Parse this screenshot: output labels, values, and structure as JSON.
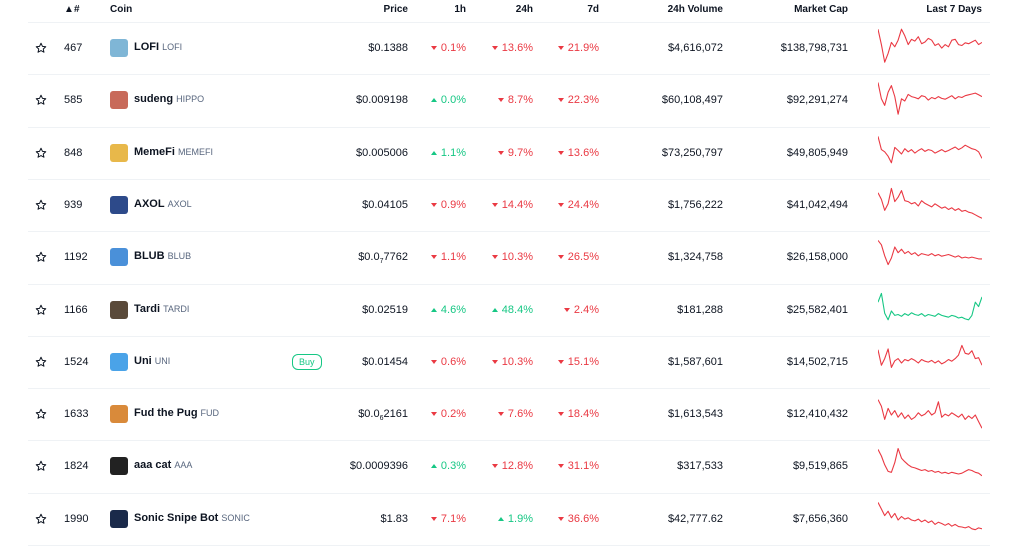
{
  "header": {
    "rank": "#",
    "coin": "Coin",
    "price": "Price",
    "h1": "1h",
    "h24": "24h",
    "d7": "7d",
    "volume": "24h Volume",
    "mcap": "Market Cap",
    "last7": "Last 7 Days"
  },
  "colors": {
    "up": "#16c784",
    "down": "#ea3943"
  },
  "rows": [
    {
      "rank": "467",
      "name": "LOFI",
      "symbol": "LOFI",
      "price": "$0.1388",
      "h1": "0.1%",
      "h1_dir": "down",
      "h24": "13.6%",
      "h24_dir": "down",
      "d7": "21.9%",
      "d7_dir": "down",
      "volume": "$4,616,072",
      "mcap": "$138,798,731",
      "logo_color": "#7fb6d6",
      "spark": [
        95,
        60,
        20,
        40,
        65,
        55,
        70,
        95,
        80,
        60,
        72,
        68,
        78,
        62,
        66,
        74,
        70,
        58,
        62,
        52,
        60,
        55,
        70,
        72,
        60,
        58,
        64,
        62,
        66,
        70,
        60,
        65
      ]
    },
    {
      "rank": "585",
      "name": "sudeng",
      "symbol": "HIPPO",
      "price": "$0.009198",
      "h1": "0.0%",
      "h1_dir": "up",
      "h24": "8.7%",
      "h24_dir": "down",
      "d7": "22.3%",
      "d7_dir": "down",
      "volume": "$60,108,497",
      "mcap": "$92,291,274",
      "logo_color": "#c86a5a",
      "spark": [
        92,
        55,
        40,
        70,
        85,
        60,
        20,
        55,
        50,
        65,
        60,
        58,
        55,
        62,
        60,
        52,
        58,
        55,
        60,
        56,
        54,
        58,
        62,
        55,
        60,
        58,
        62,
        64,
        66,
        68,
        64,
        60
      ]
    },
    {
      "rank": "848",
      "name": "MemeFi",
      "symbol": "MEMEFI",
      "price": "$0.005006",
      "h1": "1.1%",
      "h1_dir": "up",
      "h24": "9.7%",
      "h24_dir": "down",
      "d7": "13.6%",
      "d7_dir": "down",
      "volume": "$73,250,797",
      "mcap": "$49,805,949",
      "logo_color": "#e8b84a",
      "spark": [
        90,
        60,
        55,
        45,
        30,
        65,
        58,
        50,
        62,
        55,
        60,
        52,
        58,
        62,
        56,
        60,
        58,
        52,
        56,
        60,
        55,
        58,
        62,
        66,
        60,
        64,
        70,
        66,
        62,
        60,
        55,
        40
      ]
    },
    {
      "rank": "939",
      "name": "AXOL",
      "symbol": "AXOL",
      "price": "$0.04105",
      "h1": "0.9%",
      "h1_dir": "down",
      "h24": "14.4%",
      "h24_dir": "down",
      "d7": "24.4%",
      "d7_dir": "down",
      "volume": "$1,756,222",
      "mcap": "$41,042,494",
      "logo_color": "#2d4a8a",
      "spark": [
        80,
        65,
        40,
        55,
        90,
        60,
        70,
        85,
        62,
        60,
        55,
        58,
        50,
        62,
        56,
        52,
        48,
        55,
        50,
        45,
        48,
        42,
        46,
        40,
        44,
        38,
        40,
        36,
        34,
        30,
        26,
        22
      ]
    },
    {
      "rank": "1192",
      "name": "BLUB",
      "symbol": "BLUB",
      "price": "$0.0",
      "price_sub": "7",
      "price_tail": "7762",
      "h1": "1.1%",
      "h1_dir": "down",
      "h24": "10.3%",
      "h24_dir": "down",
      "d7": "26.5%",
      "d7_dir": "down",
      "volume": "$1,324,758",
      "mcap": "$26,158,000",
      "logo_color": "#4a90d9",
      "spark": [
        90,
        80,
        55,
        35,
        50,
        75,
        62,
        70,
        60,
        65,
        58,
        62,
        55,
        60,
        58,
        56,
        60,
        55,
        58,
        54,
        56,
        58,
        55,
        52,
        55,
        50,
        52,
        50,
        52,
        50,
        48,
        48
      ]
    },
    {
      "rank": "1166",
      "name": "Tardi",
      "symbol": "TARDI",
      "price": "$0.02519",
      "h1": "4.6%",
      "h1_dir": "up",
      "h24": "48.4%",
      "h24_dir": "up",
      "d7": "2.4%",
      "d7_dir": "down",
      "volume": "$181,288",
      "mcap": "$25,582,401",
      "logo_color": "#5a4a3a",
      "spark": [
        70,
        90,
        45,
        30,
        50,
        40,
        42,
        38,
        44,
        40,
        46,
        42,
        40,
        44,
        38,
        42,
        40,
        38,
        44,
        40,
        38,
        36,
        40,
        38,
        34,
        36,
        32,
        30,
        40,
        70,
        60,
        82
      ]
    },
    {
      "rank": "1524",
      "name": "Uni",
      "symbol": "UNI",
      "buy": "Buy",
      "price": "$0.01454",
      "h1": "0.6%",
      "h1_dir": "down",
      "h24": "10.3%",
      "h24_dir": "down",
      "d7": "15.1%",
      "d7_dir": "down",
      "volume": "$1,587,601",
      "mcap": "$14,502,715",
      "logo_color": "#4aa3e8",
      "spark": [
        80,
        45,
        60,
        82,
        40,
        55,
        60,
        50,
        58,
        55,
        60,
        56,
        50,
        58,
        54,
        52,
        56,
        50,
        55,
        48,
        52,
        58,
        54,
        60,
        68,
        90,
        72,
        70,
        78,
        60,
        62,
        45
      ]
    },
    {
      "rank": "1633",
      "name": "Fud the Pug",
      "symbol": "FUD",
      "price": "$0.0",
      "price_sub": "6",
      "price_tail": "2161",
      "h1": "0.2%",
      "h1_dir": "down",
      "h24": "7.6%",
      "h24_dir": "down",
      "d7": "18.4%",
      "d7_dir": "down",
      "volume": "$1,613,543",
      "mcap": "$12,410,432",
      "logo_color": "#d98a3a",
      "spark": [
        85,
        70,
        40,
        65,
        50,
        60,
        45,
        55,
        42,
        50,
        40,
        45,
        55,
        48,
        52,
        60,
        50,
        55,
        80,
        45,
        52,
        48,
        55,
        50,
        45,
        52,
        40,
        48,
        42,
        50,
        35,
        20
      ]
    },
    {
      "rank": "1824",
      "name": "aaa cat",
      "symbol": "AAA",
      "price": "$0.0009396",
      "h1": "0.3%",
      "h1_dir": "up",
      "h24": "12.8%",
      "h24_dir": "down",
      "d7": "31.1%",
      "d7_dir": "down",
      "volume": "$317,533",
      "mcap": "$9,519,865",
      "logo_color": "#222222",
      "spark": [
        90,
        75,
        55,
        40,
        38,
        60,
        92,
        70,
        62,
        55,
        50,
        48,
        45,
        42,
        44,
        40,
        42,
        38,
        40,
        36,
        38,
        35,
        38,
        36,
        34,
        36,
        40,
        44,
        42,
        38,
        36,
        30
      ]
    },
    {
      "rank": "1990",
      "name": "Sonic Snipe Bot",
      "symbol": "SONIC",
      "price": "$1.83",
      "h1": "7.1%",
      "h1_dir": "down",
      "h24": "1.9%",
      "h24_dir": "up",
      "d7": "36.6%",
      "d7_dir": "down",
      "volume": "$42,777.62",
      "mcap": "$7,656,360",
      "logo_color": "#1a2a4a",
      "spark": [
        90,
        75,
        60,
        70,
        55,
        65,
        50,
        58,
        52,
        55,
        50,
        48,
        52,
        46,
        50,
        44,
        48,
        40,
        45,
        42,
        38,
        42,
        36,
        40,
        35,
        34,
        32,
        35,
        30,
        28,
        32,
        30
      ]
    }
  ]
}
